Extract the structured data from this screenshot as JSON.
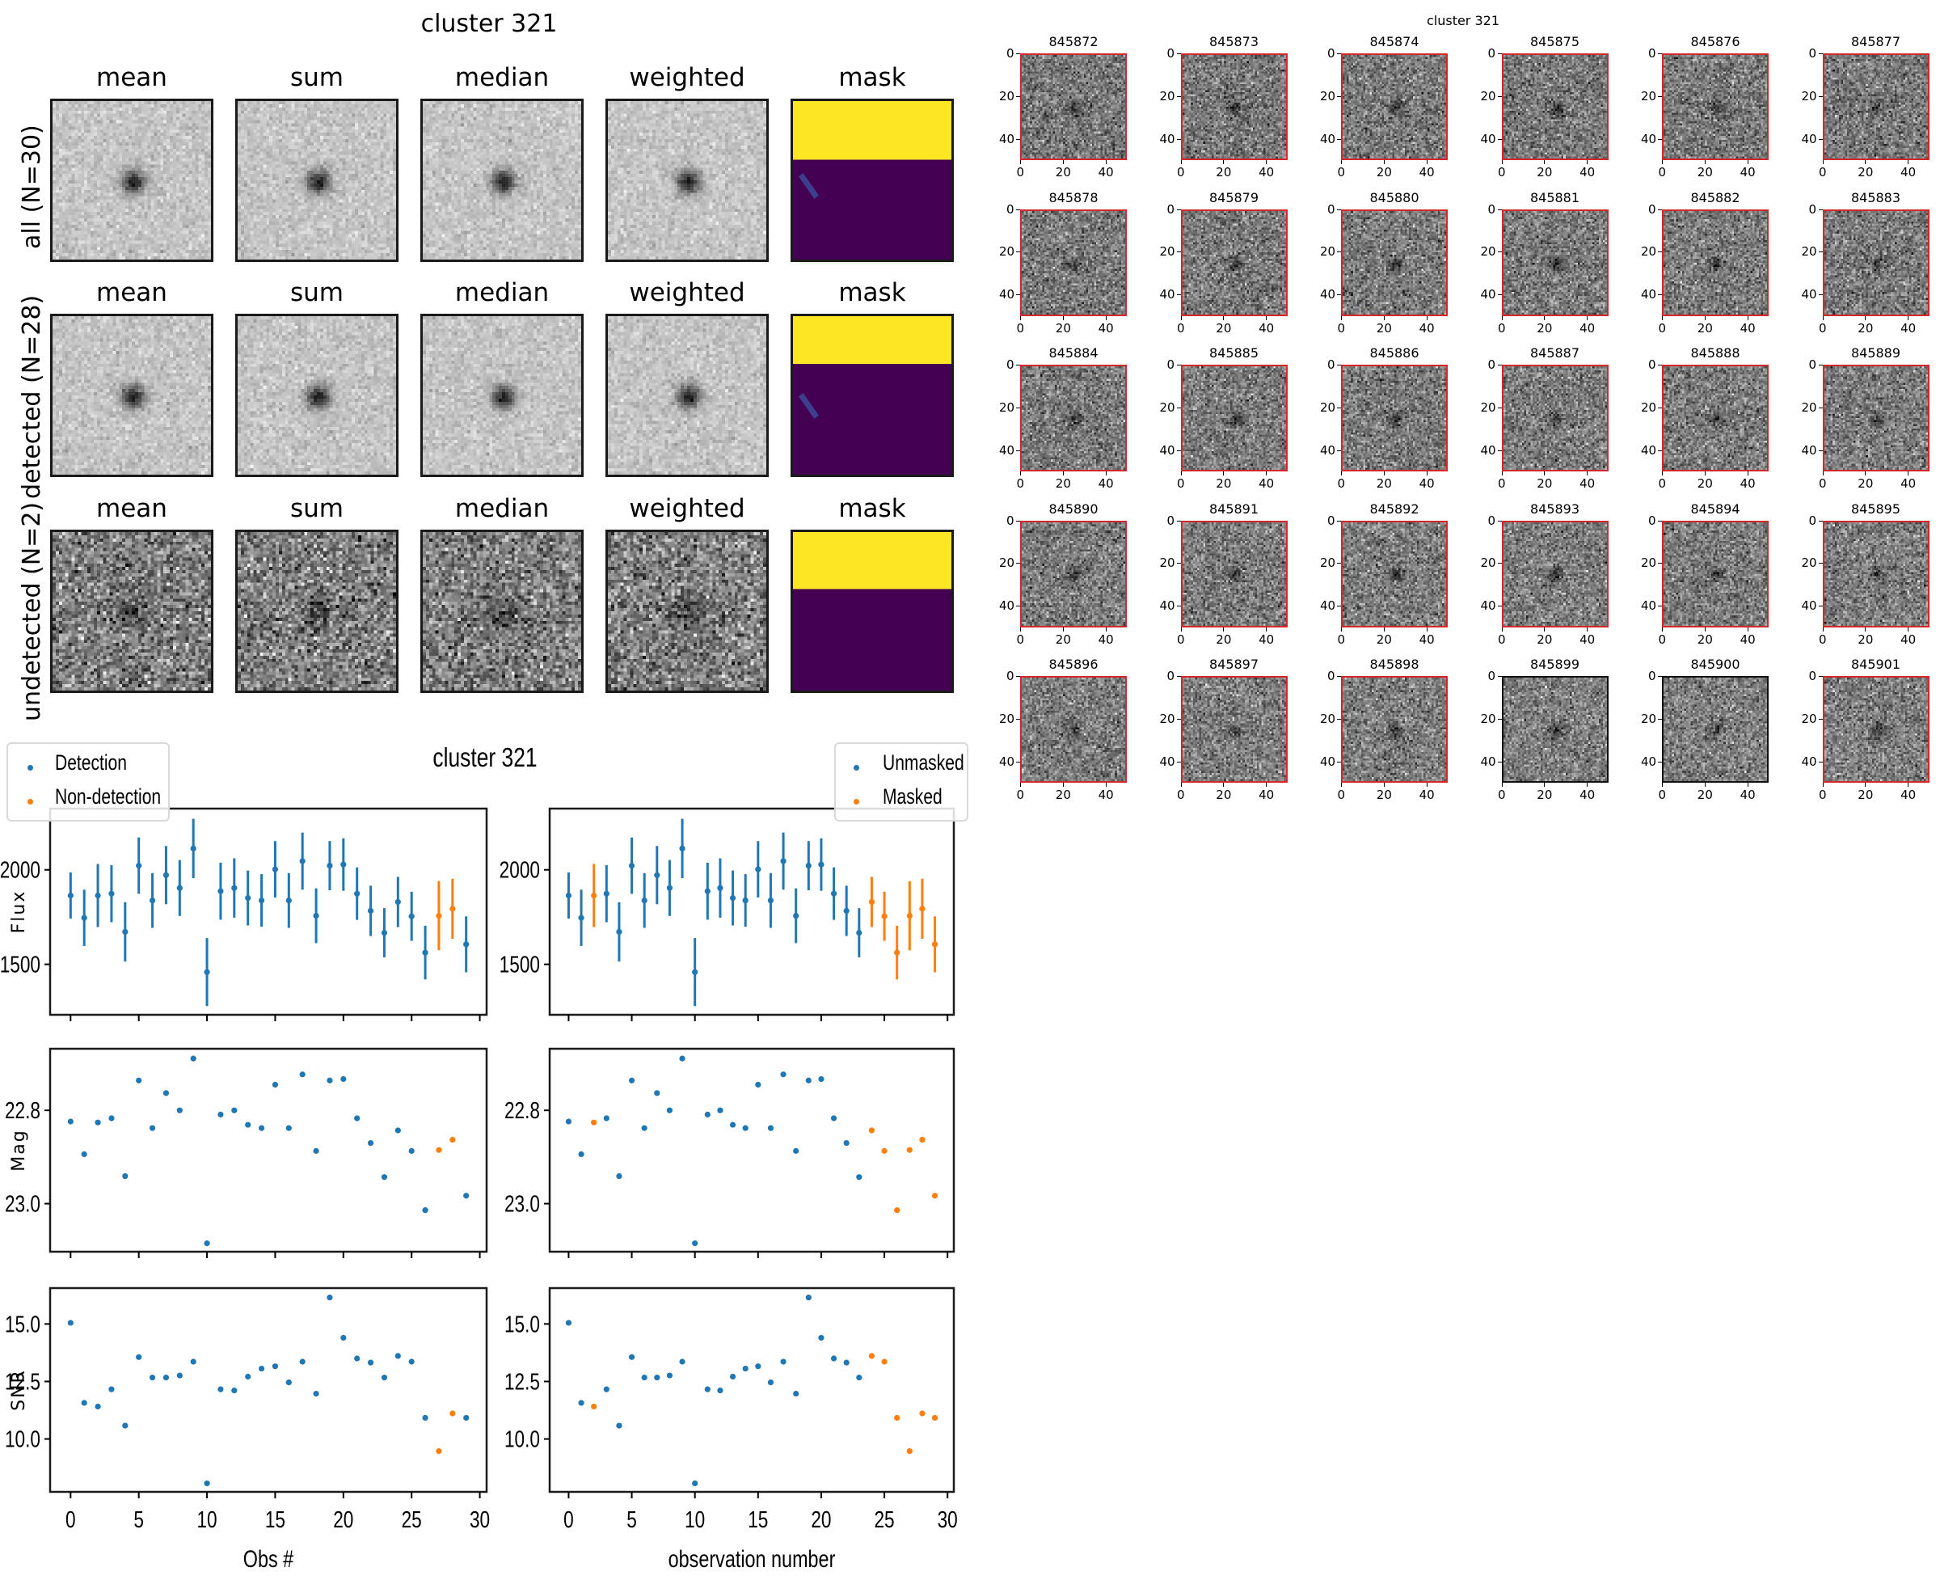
{
  "colors": {
    "detection": "#1f77b4",
    "non_detection": "#ff7f0e",
    "detected_border": "#d62728",
    "undetected_border": "#111111",
    "mask_yellow": "#fde725",
    "mask_purple": "#440154",
    "mask_streak": "#3b3f8c"
  },
  "coadd": {
    "title": "cluster 321",
    "columns": [
      "mean",
      "sum",
      "median",
      "weighted",
      "mask"
    ],
    "rows": [
      {
        "label": "all (N=30)",
        "noise": "low"
      },
      {
        "label": "detected (N=28)",
        "noise": "low"
      },
      {
        "label": "undetected (N=2)",
        "noise": "high"
      }
    ]
  },
  "stamps": {
    "title": "cluster 321",
    "axis_ticks": [
      "0",
      "20",
      "40"
    ],
    "items": [
      {
        "id": "845872",
        "detected": true
      },
      {
        "id": "845873",
        "detected": true
      },
      {
        "id": "845874",
        "detected": true
      },
      {
        "id": "845875",
        "detected": true
      },
      {
        "id": "845876",
        "detected": true
      },
      {
        "id": "845877",
        "detected": true
      },
      {
        "id": "845878",
        "detected": true
      },
      {
        "id": "845879",
        "detected": true
      },
      {
        "id": "845880",
        "detected": true
      },
      {
        "id": "845881",
        "detected": true
      },
      {
        "id": "845882",
        "detected": true
      },
      {
        "id": "845883",
        "detected": true
      },
      {
        "id": "845884",
        "detected": true
      },
      {
        "id": "845885",
        "detected": true
      },
      {
        "id": "845886",
        "detected": true
      },
      {
        "id": "845887",
        "detected": true
      },
      {
        "id": "845888",
        "detected": true
      },
      {
        "id": "845889",
        "detected": true
      },
      {
        "id": "845890",
        "detected": true
      },
      {
        "id": "845891",
        "detected": true
      },
      {
        "id": "845892",
        "detected": true
      },
      {
        "id": "845893",
        "detected": true
      },
      {
        "id": "845894",
        "detected": true
      },
      {
        "id": "845895",
        "detected": true
      },
      {
        "id": "845896",
        "detected": true
      },
      {
        "id": "845897",
        "detected": true
      },
      {
        "id": "845898",
        "detected": true
      },
      {
        "id": "845899",
        "detected": false
      },
      {
        "id": "845900",
        "detected": false
      },
      {
        "id": "845901",
        "detected": true
      }
    ]
  },
  "chart_data": {
    "type": "scatter",
    "title": "cluster 321",
    "x": [
      0,
      1,
      2,
      3,
      4,
      5,
      6,
      7,
      8,
      9,
      10,
      11,
      12,
      13,
      14,
      15,
      16,
      17,
      18,
      19,
      20,
      21,
      22,
      23,
      24,
      25,
      26,
      27,
      28,
      29
    ],
    "xlim": [
      -1.5,
      30.5
    ],
    "xticks": [
      0,
      5,
      10,
      15,
      20,
      25,
      30
    ],
    "xlabels": {
      "left": "Obs #",
      "right": "observation number"
    },
    "legends": {
      "left": {
        "placement": "upper-left",
        "entries": [
          "Detection",
          "Non-detection"
        ]
      },
      "right": {
        "placement": "upper-right",
        "entries": [
          "Unmasked",
          "Masked"
        ]
      }
    },
    "non_detection_indices": [
      27,
      28
    ],
    "masked_indices": [
      2,
      24,
      25,
      26,
      27,
      28,
      29
    ],
    "panels": [
      {
        "ylabel": "Flux",
        "ylim": [
          1233,
          2324
        ],
        "yticks": [
          1500,
          2000
        ],
        "ytick_labels": [
          "1500",
          "2000"
        ],
        "values": [
          1864,
          1746,
          1864,
          1874,
          1672,
          2022,
          1838,
          1972,
          1904,
          2113,
          1459,
          1887,
          1904,
          1851,
          1838,
          2003,
          1838,
          2046,
          1757,
          2022,
          2028,
          1874,
          1783,
          1667,
          1830,
          1754,
          1562,
          1757,
          1794,
          1606
        ],
        "errors": [
          122,
          149,
          167,
          151,
          157,
          149,
          145,
          154,
          148,
          157,
          180,
          151,
          157,
          145,
          139,
          149,
          145,
          151,
          145,
          130,
          139,
          139,
          133,
          130,
          133,
          130,
          142,
          183,
          159,
          148
        ]
      },
      {
        "ylabel": "Mag",
        "ylim": [
          23.103,
          22.668
        ],
        "inverted": true,
        "yticks": [
          22.8,
          23.0
        ],
        "ytick_labels": [
          "22.8",
          "23.0"
        ],
        "values": [
          22.824,
          22.894,
          22.826,
          22.817,
          22.941,
          22.736,
          22.838,
          22.763,
          22.8,
          22.689,
          23.085,
          22.809,
          22.8,
          22.831,
          22.838,
          22.745,
          22.838,
          22.723,
          22.887,
          22.736,
          22.733,
          22.817,
          22.87,
          22.943,
          22.843,
          22.887,
          23.014,
          22.885,
          22.863,
          22.983
        ]
      },
      {
        "ylabel": "SNR",
        "ylim": [
          7.7,
          16.56
        ],
        "yticks": [
          10.0,
          12.5,
          15.0
        ],
        "ytick_labels": [
          "10.0",
          "12.5",
          "15.0"
        ],
        "values": [
          15.05,
          11.57,
          11.41,
          12.16,
          10.58,
          13.56,
          12.67,
          12.67,
          12.76,
          13.36,
          8.07,
          12.16,
          12.11,
          12.71,
          13.06,
          13.16,
          12.46,
          13.36,
          11.97,
          16.15,
          14.4,
          13.5,
          13.32,
          12.67,
          13.61,
          13.36,
          10.92,
          9.47,
          11.11,
          10.92
        ]
      }
    ]
  }
}
